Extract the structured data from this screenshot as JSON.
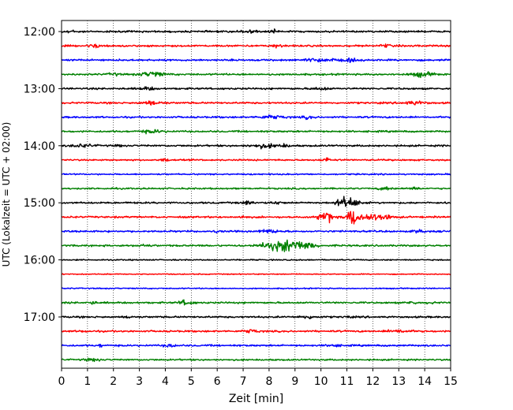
{
  "chart_data": {
    "type": "line",
    "title": "",
    "xlabel": "Zeit  [min]",
    "ylabel": "UTC (Lokalzeit = UTC + 02:00)",
    "xlim": [
      0,
      15
    ],
    "x_ticks": [
      0,
      1,
      2,
      3,
      4,
      5,
      6,
      7,
      8,
      9,
      10,
      11,
      12,
      13,
      14,
      15
    ],
    "x_tick_labels": [
      "0",
      "1",
      "2",
      "3",
      "4",
      "5",
      "6",
      "7",
      "8",
      "9",
      "10",
      "11",
      "12",
      "13",
      "14",
      "15"
    ],
    "y_tick_labels": [
      "12:00",
      "13:00",
      "14:00",
      "15:00",
      "16:00",
      "17:00"
    ],
    "y_tick_rows": [
      0,
      4,
      8,
      12,
      16,
      20
    ],
    "grid_x": true,
    "trace_colors": [
      "#000000",
      "#ff0000",
      "#0000ff",
      "#008000"
    ],
    "rows": [
      {
        "start": "12:00",
        "noise": 0.9,
        "bursts": [
          [
            0.3,
            1.2,
            0.25
          ],
          [
            7.2,
            1.6,
            0.3
          ],
          [
            8.2,
            1.3,
            0.2
          ]
        ]
      },
      {
        "start": "12:15",
        "noise": 0.9,
        "bursts": [
          [
            1.3,
            1.5,
            0.3
          ],
          [
            8.3,
            1.4,
            0.2
          ],
          [
            12.5,
            1.3,
            0.2
          ]
        ]
      },
      {
        "start": "12:30",
        "noise": 0.9,
        "bursts": [
          [
            10.0,
            1.6,
            0.6
          ],
          [
            11.2,
            1.4,
            0.3
          ]
        ]
      },
      {
        "start": "12:45",
        "noise": 0.9,
        "bursts": [
          [
            3.5,
            2.4,
            0.45
          ],
          [
            13.9,
            2.3,
            0.4
          ],
          [
            2.0,
            1.1,
            0.2
          ]
        ]
      },
      {
        "start": "13:00",
        "noise": 0.9,
        "bursts": [
          [
            3.3,
            1.3,
            0.3
          ],
          [
            10.0,
            1.3,
            0.3
          ]
        ]
      },
      {
        "start": "13:15",
        "noise": 0.9,
        "bursts": [
          [
            3.5,
            1.5,
            0.4
          ],
          [
            13.6,
            1.6,
            0.4
          ]
        ]
      },
      {
        "start": "13:30",
        "noise": 0.9,
        "bursts": [
          [
            8.1,
            1.6,
            0.45
          ],
          [
            9.5,
            1.2,
            0.2
          ]
        ]
      },
      {
        "start": "13:45",
        "noise": 0.9,
        "bursts": [
          [
            3.5,
            1.4,
            0.4
          ]
        ]
      },
      {
        "start": "14:00",
        "noise": 0.9,
        "bursts": [
          [
            0.8,
            1.5,
            0.4
          ],
          [
            2.2,
            1.2,
            0.1
          ],
          [
            7.8,
            1.8,
            0.5
          ],
          [
            8.6,
            1.3,
            0.2
          ]
        ]
      },
      {
        "start": "14:15",
        "noise": 0.8,
        "bursts": [
          [
            10.2,
            2.0,
            0.15
          ],
          [
            4.0,
            1.1,
            0.2
          ]
        ]
      },
      {
        "start": "14:30",
        "noise": 0.7,
        "bursts": []
      },
      {
        "start": "14:45",
        "noise": 0.8,
        "bursts": [
          [
            13.6,
            1.6,
            0.15
          ],
          [
            12.5,
            1.2,
            0.3
          ]
        ]
      },
      {
        "start": "15:00",
        "noise": 0.9,
        "bursts": [
          [
            7.2,
            1.6,
            0.25
          ],
          [
            10.9,
            3.8,
            0.3
          ],
          [
            11.2,
            2.4,
            0.4
          ],
          [
            8.3,
            1.3,
            0.2
          ]
        ]
      },
      {
        "start": "15:15",
        "noise": 0.9,
        "bursts": [
          [
            10.2,
            6.0,
            0.25
          ],
          [
            11.25,
            8.5,
            0.25
          ],
          [
            11.9,
            3.0,
            0.45
          ],
          [
            12.5,
            1.6,
            0.35
          ],
          [
            7.0,
            1.2,
            0.1
          ]
        ]
      },
      {
        "start": "15:30",
        "noise": 0.9,
        "bursts": [
          [
            8.0,
            1.6,
            0.35
          ],
          [
            13.8,
            1.4,
            0.2
          ],
          [
            6.0,
            1.3,
            0.1
          ]
        ]
      },
      {
        "start": "15:45",
        "noise": 0.9,
        "bursts": [
          [
            8.2,
            3.5,
            0.55
          ],
          [
            8.9,
            4.8,
            0.5
          ],
          [
            9.5,
            2.2,
            0.35
          ],
          [
            3.2,
            1.2,
            0.2
          ]
        ]
      },
      {
        "start": "16:00",
        "noise": 0.6,
        "bursts": []
      },
      {
        "start": "16:15",
        "noise": 0.5,
        "bursts": []
      },
      {
        "start": "16:30",
        "noise": 0.6,
        "bursts": []
      },
      {
        "start": "16:45",
        "noise": 0.9,
        "bursts": [
          [
            1.2,
            1.8,
            0.1
          ],
          [
            4.8,
            2.4,
            0.25
          ],
          [
            13.5,
            1.6,
            0.15
          ],
          [
            14.2,
            1.6,
            0.1
          ]
        ]
      },
      {
        "start": "17:00",
        "noise": 0.9,
        "bursts": [
          [
            2.6,
            2.0,
            0.08
          ],
          [
            9.5,
            1.4,
            0.3
          ],
          [
            11.0,
            1.6,
            0.1
          ]
        ]
      },
      {
        "start": "17:15",
        "noise": 0.9,
        "bursts": [
          [
            7.3,
            1.6,
            0.25
          ],
          [
            13.0,
            1.4,
            0.4
          ],
          [
            0.8,
            1.2,
            0.1
          ]
        ]
      },
      {
        "start": "17:30",
        "noise": 0.9,
        "bursts": [
          [
            4.2,
            1.6,
            0.2
          ],
          [
            1.5,
            1.2,
            0.1
          ],
          [
            10.5,
            1.3,
            0.2
          ]
        ]
      },
      {
        "start": "17:45",
        "noise": 0.8,
        "bursts": [
          [
            1.2,
            1.2,
            0.3
          ]
        ]
      }
    ]
  }
}
